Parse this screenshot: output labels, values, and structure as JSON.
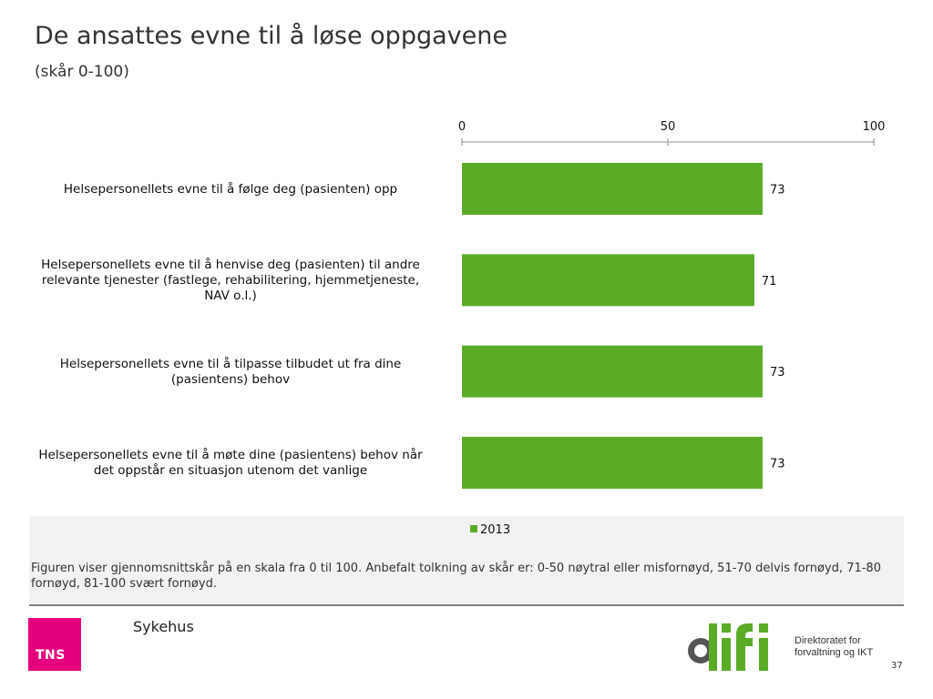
{
  "header": {
    "title": "De ansattes evne til å løse oppgavene",
    "subtitle": "(skår 0-100)"
  },
  "chart_data": {
    "type": "bar",
    "orientation": "horizontal",
    "xlim": [
      0,
      100
    ],
    "x_ticks": [
      "0",
      "50",
      "100"
    ],
    "x_tick_values": [
      0,
      50,
      100
    ],
    "axis_position": "top",
    "categories": [
      "Helsepersonellets evne til å følge deg (pasienten) opp",
      "Helsepersonellets evne til å henvise deg (pasienten) til andre relevante tjenester (fastlege, rehabilitering, hjemmetjeneste, NAV o.l.)",
      "Helsepersonellets evne til å tilpasse tilbudet ut fra dine (pasientens) behov",
      "Helsepersonellets evne til å møte dine (pasientens) behov når det oppstår en situasjon utenom det vanlige"
    ],
    "category_lines": [
      [
        "Helsepersonellets evne til å følge deg (pasienten) opp"
      ],
      [
        "Helsepersonellets evne til å henvise deg (pasienten) til andre",
        "relevante tjenester (fastlege, rehabilitering, hjemmetjeneste,",
        "NAV o.l.)"
      ],
      [
        "Helsepersonellets evne til å tilpasse tilbudet ut fra dine",
        "(pasientens) behov"
      ],
      [
        "Helsepersonellets evne til å møte dine (pasientens) behov når",
        "det oppstår en situasjon utenom det vanlige"
      ]
    ],
    "series": [
      {
        "name": "2013",
        "color": "#5aac27",
        "values": [
          73,
          71,
          73,
          73
        ],
        "labels": [
          "73",
          "71",
          "73",
          "73"
        ]
      }
    ],
    "legend": {
      "position": "bottom",
      "entries": [
        "2013"
      ]
    },
    "grid": false
  },
  "footer": {
    "note": "Figuren viser gjennomsnittskår på en skala fra 0 til 100. Anbefalt tolkning av skår er: 0-50 nøytral eller misfornøyd, 51-70 delvis fornøyd, 71-80 fornøyd, 81-100 svært fornøyd.",
    "segment": "Sykehus",
    "page_number": "37"
  },
  "logos": {
    "tns": {
      "text": "TNS",
      "color": "#e4007c"
    },
    "difi": {
      "text": "difi",
      "line1": "Direktoratet for",
      "line2": "forvaltning og IKT",
      "color": "#5aac27"
    }
  }
}
